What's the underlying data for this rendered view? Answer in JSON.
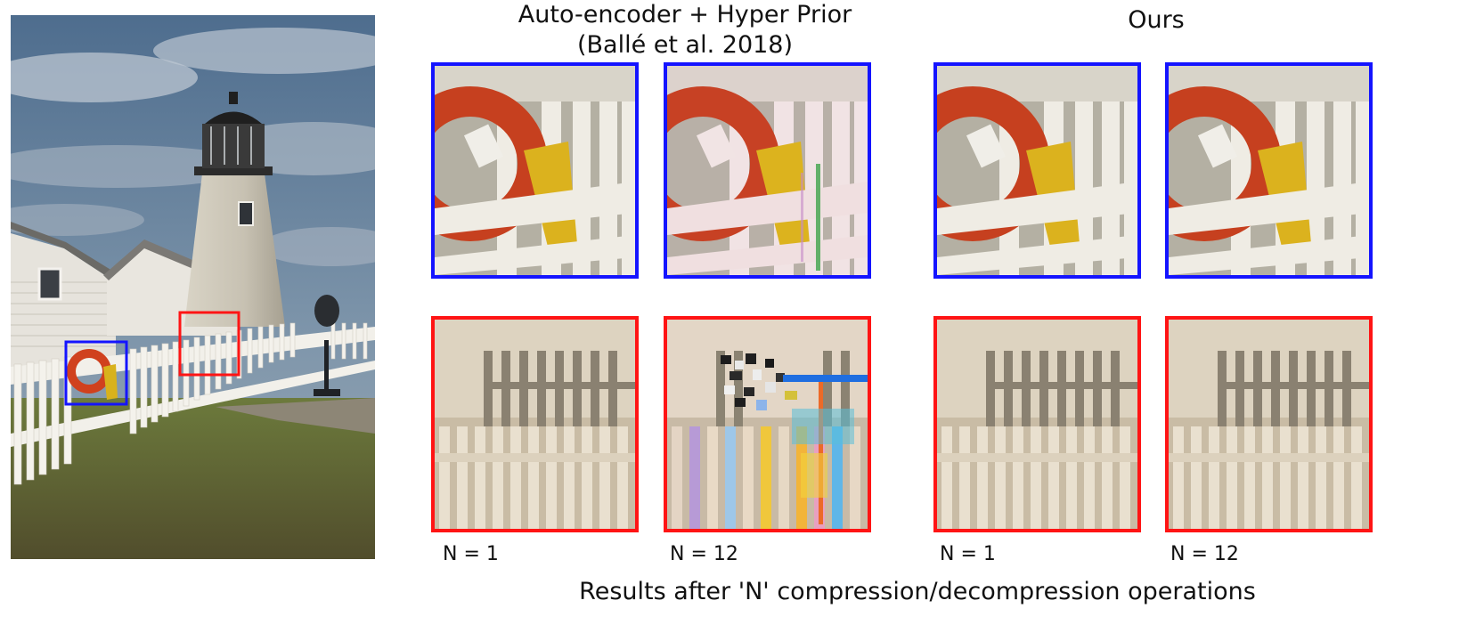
{
  "figure": {
    "left_heading_line1": "Auto-encoder + Hyper Prior",
    "left_heading_line2": "(Ballé et al. 2018)",
    "right_heading": "Ours",
    "columns": [
      {
        "method": "Auto-encoder + Hyper Prior",
        "label": "N = 1"
      },
      {
        "method": "Auto-encoder + Hyper Prior",
        "label": "N = 12"
      },
      {
        "method": "Ours",
        "label": "N = 1"
      },
      {
        "method": "Ours",
        "label": "N = 12"
      }
    ],
    "caption": "Results after 'N' compression/decompression operations",
    "colors": {
      "blue_box": "#1414ff",
      "red_box": "#ff1414"
    }
  }
}
